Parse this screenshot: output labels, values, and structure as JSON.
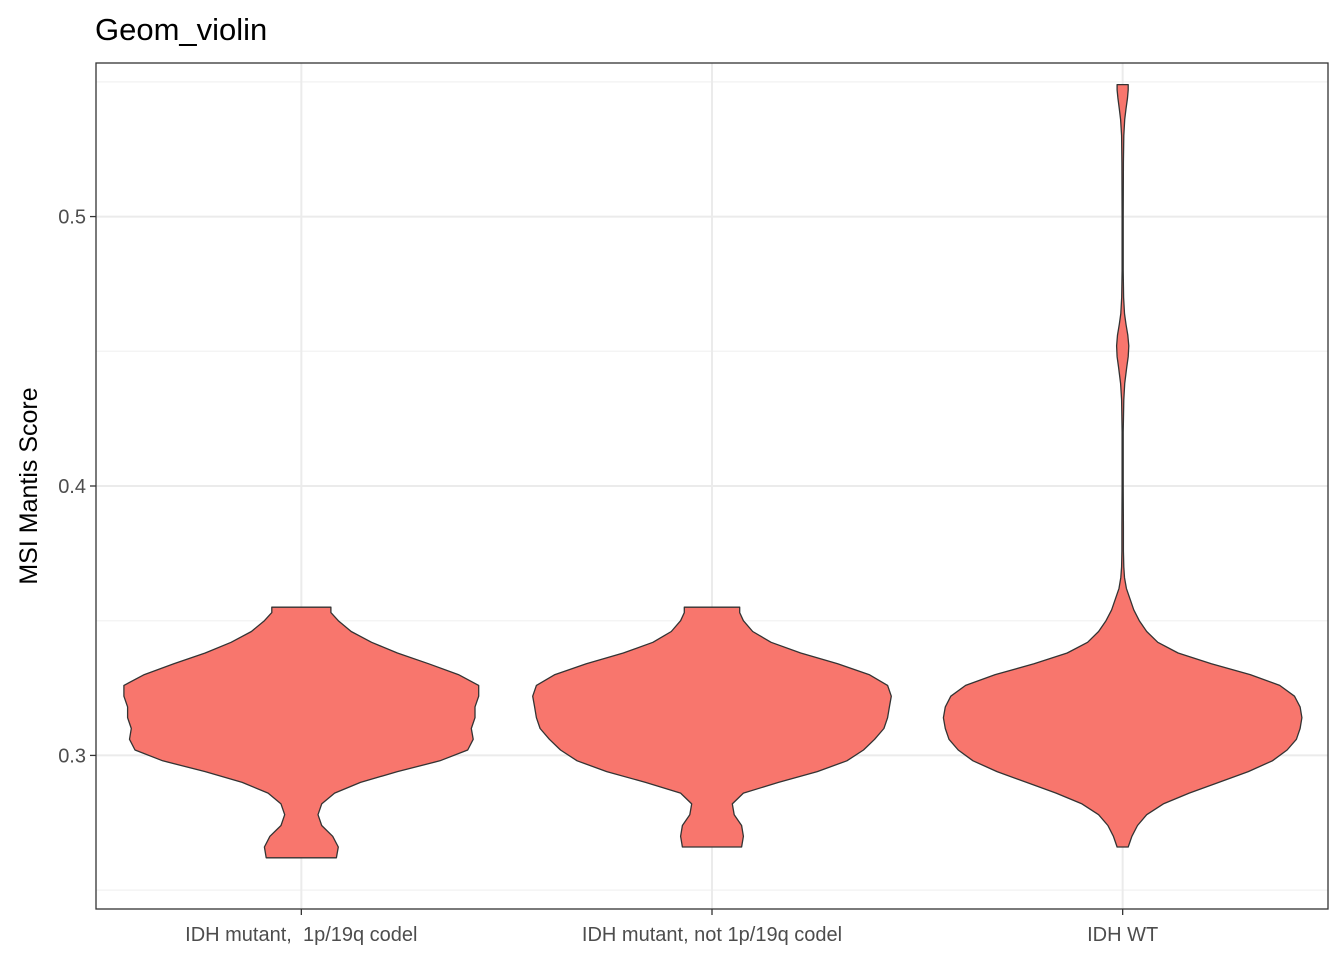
{
  "chart_data": {
    "type": "violin",
    "title": "Geom_violin",
    "xlabel": "",
    "ylabel": "MSI Mantis Score",
    "categories": [
      "IDH mutant,  1p/19q codel",
      "IDH mutant, not 1p/19q codel",
      "IDH WT"
    ],
    "yticks": [
      0.3,
      0.4,
      0.5
    ],
    "ytick_labels": [
      "0.3",
      "0.4",
      "0.5"
    ],
    "ylim": [
      0.243,
      0.557
    ],
    "grid": true,
    "fill_color": "#F8766D",
    "outline_color": "#333333",
    "series": [
      {
        "category": "IDH mutant,  1p/19q codel",
        "min": 0.262,
        "max": 0.355,
        "density_profile": [
          [
            0.262,
            0.19
          ],
          [
            0.266,
            0.2
          ],
          [
            0.27,
            0.17
          ],
          [
            0.274,
            0.11
          ],
          [
            0.278,
            0.09
          ],
          [
            0.282,
            0.11
          ],
          [
            0.286,
            0.18
          ],
          [
            0.29,
            0.32
          ],
          [
            0.294,
            0.52
          ],
          [
            0.298,
            0.75
          ],
          [
            0.302,
            0.9
          ],
          [
            0.306,
            0.93
          ],
          [
            0.31,
            0.92
          ],
          [
            0.314,
            0.94
          ],
          [
            0.318,
            0.94
          ],
          [
            0.322,
            0.96
          ],
          [
            0.326,
            0.96
          ],
          [
            0.33,
            0.85
          ],
          [
            0.334,
            0.69
          ],
          [
            0.338,
            0.52
          ],
          [
            0.342,
            0.38
          ],
          [
            0.346,
            0.27
          ],
          [
            0.35,
            0.2
          ],
          [
            0.353,
            0.16
          ],
          [
            0.355,
            0.16
          ]
        ]
      },
      {
        "category": "IDH mutant, not 1p/19q codel",
        "min": 0.266,
        "max": 0.355,
        "density_profile": [
          [
            0.266,
            0.16
          ],
          [
            0.27,
            0.17
          ],
          [
            0.274,
            0.16
          ],
          [
            0.278,
            0.12
          ],
          [
            0.282,
            0.11
          ],
          [
            0.286,
            0.17
          ],
          [
            0.29,
            0.36
          ],
          [
            0.294,
            0.57
          ],
          [
            0.298,
            0.73
          ],
          [
            0.302,
            0.82
          ],
          [
            0.306,
            0.88
          ],
          [
            0.31,
            0.93
          ],
          [
            0.314,
            0.95
          ],
          [
            0.318,
            0.96
          ],
          [
            0.322,
            0.97
          ],
          [
            0.326,
            0.95
          ],
          [
            0.33,
            0.85
          ],
          [
            0.334,
            0.68
          ],
          [
            0.338,
            0.48
          ],
          [
            0.342,
            0.32
          ],
          [
            0.346,
            0.22
          ],
          [
            0.35,
            0.17
          ],
          [
            0.353,
            0.15
          ],
          [
            0.355,
            0.15
          ]
        ]
      },
      {
        "category": "IDH WT",
        "min": 0.266,
        "max": 0.549,
        "density_profile": [
          [
            0.266,
            0.03
          ],
          [
            0.27,
            0.05
          ],
          [
            0.274,
            0.08
          ],
          [
            0.278,
            0.13
          ],
          [
            0.282,
            0.22
          ],
          [
            0.286,
            0.36
          ],
          [
            0.29,
            0.52
          ],
          [
            0.294,
            0.68
          ],
          [
            0.298,
            0.81
          ],
          [
            0.302,
            0.89
          ],
          [
            0.306,
            0.94
          ],
          [
            0.31,
            0.96
          ],
          [
            0.314,
            0.97
          ],
          [
            0.318,
            0.96
          ],
          [
            0.322,
            0.93
          ],
          [
            0.326,
            0.85
          ],
          [
            0.33,
            0.69
          ],
          [
            0.334,
            0.48
          ],
          [
            0.338,
            0.3
          ],
          [
            0.342,
            0.19
          ],
          [
            0.346,
            0.13
          ],
          [
            0.35,
            0.09
          ],
          [
            0.354,
            0.06
          ],
          [
            0.358,
            0.04
          ],
          [
            0.362,
            0.02
          ],
          [
            0.366,
            0.01
          ],
          [
            0.37,
            0.006
          ],
          [
            0.376,
            0.004
          ],
          [
            0.385,
            0.004
          ],
          [
            0.4,
            0.003
          ],
          [
            0.42,
            0.003
          ],
          [
            0.432,
            0.006
          ],
          [
            0.438,
            0.011
          ],
          [
            0.444,
            0.022
          ],
          [
            0.448,
            0.03
          ],
          [
            0.452,
            0.033
          ],
          [
            0.456,
            0.028
          ],
          [
            0.46,
            0.018
          ],
          [
            0.464,
            0.01
          ],
          [
            0.47,
            0.005
          ],
          [
            0.48,
            0.003
          ],
          [
            0.5,
            0.003
          ],
          [
            0.52,
            0.004
          ],
          [
            0.53,
            0.006
          ],
          [
            0.536,
            0.011
          ],
          [
            0.54,
            0.018
          ],
          [
            0.544,
            0.026
          ],
          [
            0.547,
            0.03
          ],
          [
            0.549,
            0.03
          ]
        ]
      }
    ]
  }
}
